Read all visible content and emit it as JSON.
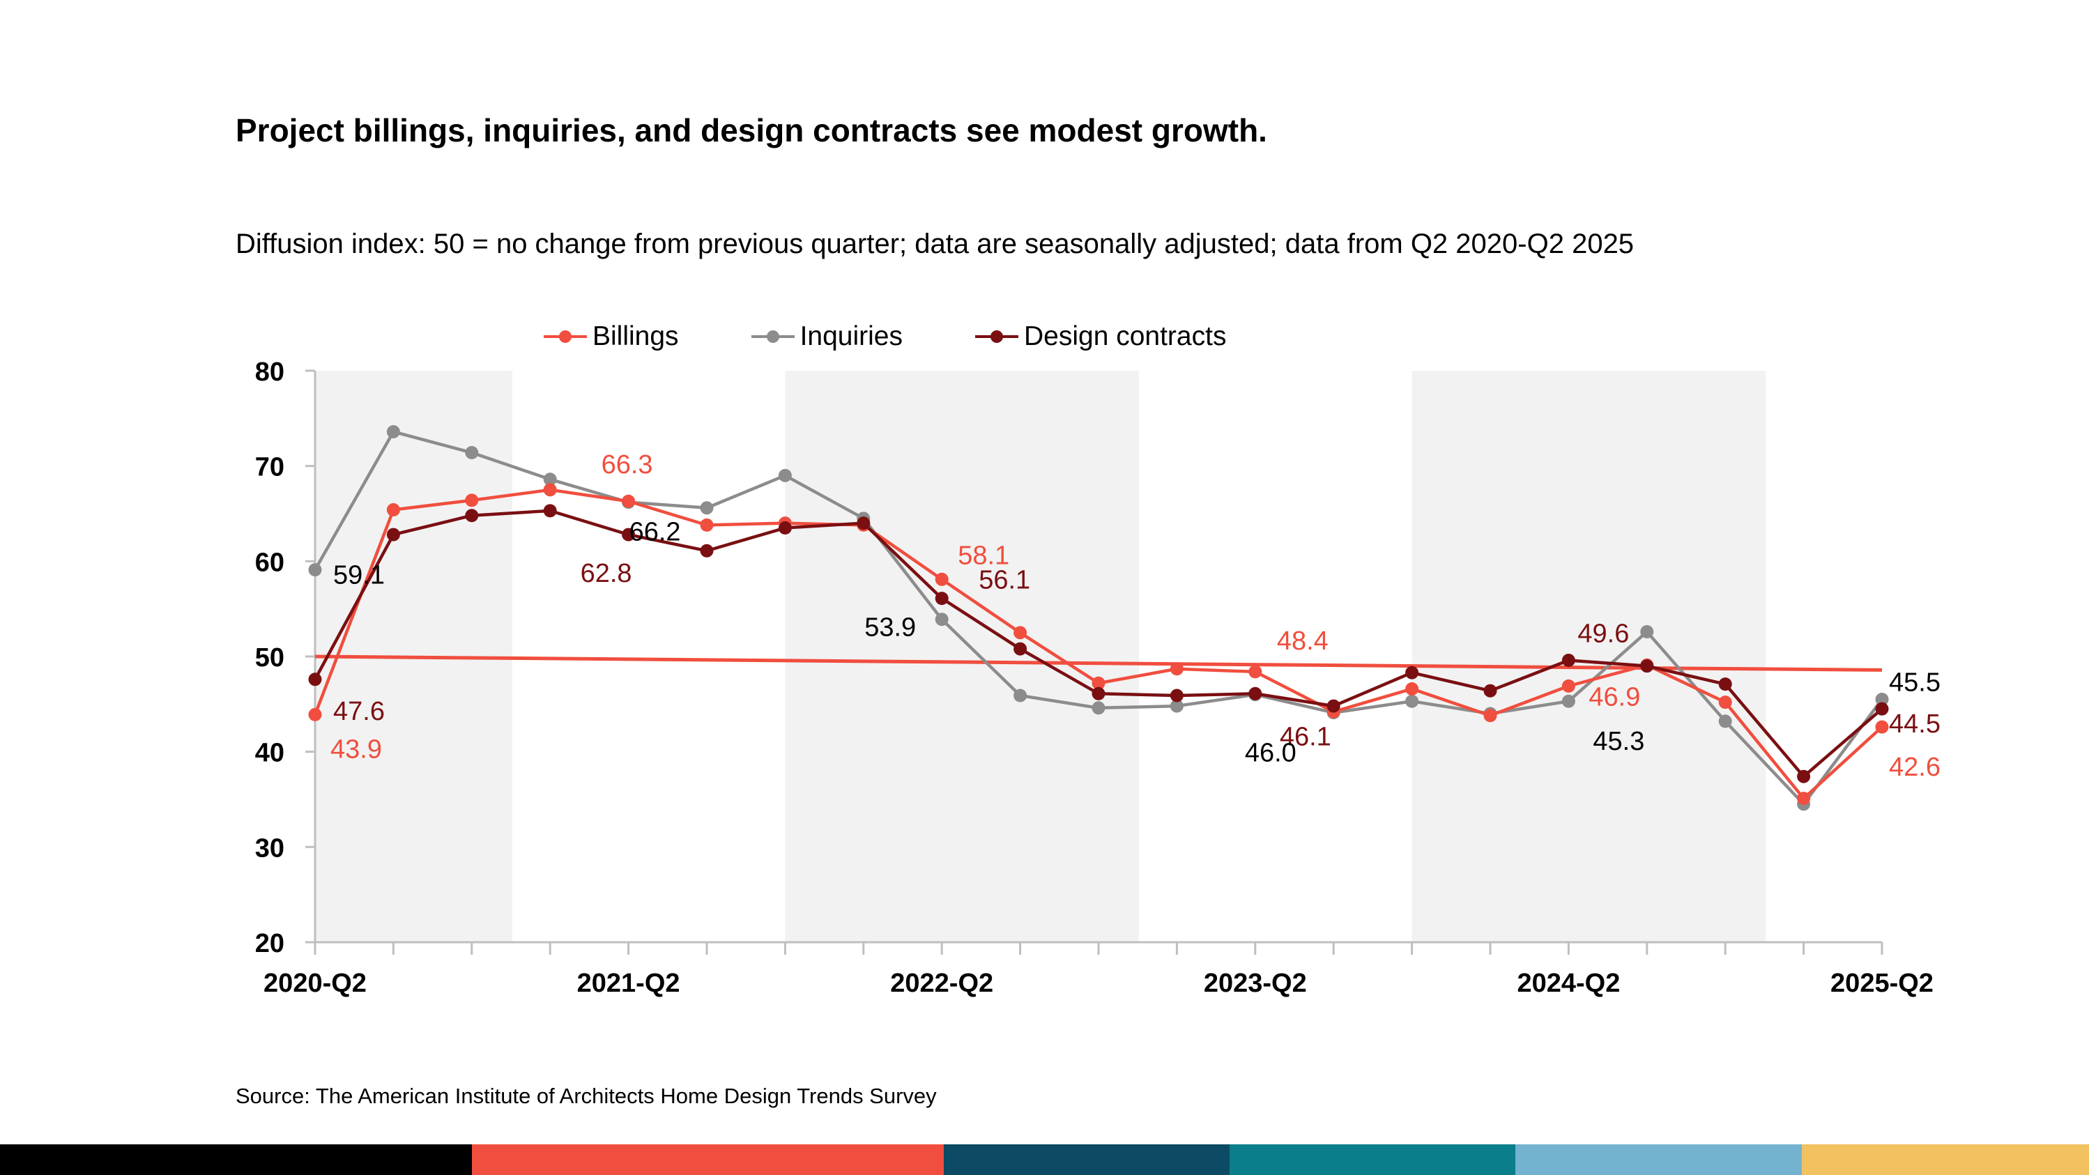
{
  "title": "Project billings, inquiries, and design contracts see modest growth.",
  "subtitle": "Diffusion index: 50 = no change from previous quarter; data are seasonally adjusted; data from Q2 2020-Q2 2025",
  "source": "Source: The American Institute of Architects Home Design Trends Survey",
  "legend": [
    {
      "name": "Billings",
      "color": "#f04e3e"
    },
    {
      "name": "Inquiries",
      "color": "#8c8c8c"
    },
    {
      "name": "Design contracts",
      "color": "#7a0f12"
    }
  ],
  "footer_colors": [
    "#000000",
    "#f04e3e",
    "#0d4a63",
    "#0b7e8c",
    "#74b3cf",
    "#f2c261"
  ],
  "chart_data": {
    "type": "line",
    "title": "Project billings, inquiries, and design contracts see modest growth.",
    "ylim": [
      20,
      80
    ],
    "yticks": [
      20,
      30,
      40,
      50,
      60,
      70,
      80
    ],
    "reference_line": 50,
    "x": [
      "2020-Q2",
      "2020-Q3",
      "2020-Q4",
      "2021-Q1",
      "2021-Q2",
      "2021-Q3",
      "2021-Q4",
      "2022-Q1",
      "2022-Q2",
      "2022-Q3",
      "2022-Q4",
      "2023-Q1",
      "2023-Q2",
      "2023-Q3",
      "2023-Q4",
      "2024-Q1",
      "2024-Q2",
      "2024-Q3",
      "2024-Q4",
      "2025-Q1",
      "2025-Q2"
    ],
    "xtick_labels": [
      "2020-Q2",
      "2021-Q2",
      "2022-Q2",
      "2023-Q2",
      "2024-Q2",
      "2025-Q2"
    ],
    "xtick_indices": [
      0,
      4,
      8,
      12,
      16,
      20
    ],
    "shaded_ranges": [
      [
        0,
        2
      ],
      [
        6,
        10
      ],
      [
        14,
        18
      ]
    ],
    "series": [
      {
        "name": "Billings",
        "color": "#f04e3e",
        "values": [
          43.9,
          65.4,
          66.4,
          67.5,
          66.3,
          63.8,
          64.0,
          63.8,
          58.1,
          52.5,
          47.2,
          48.7,
          48.4,
          44.2,
          46.6,
          43.8,
          46.9,
          49.1,
          45.2,
          35.1,
          42.6
        ]
      },
      {
        "name": "Inquiries",
        "color": "#8c8c8c",
        "values": [
          59.1,
          73.6,
          71.4,
          68.6,
          66.2,
          65.6,
          69.0,
          64.5,
          53.9,
          45.9,
          44.6,
          44.8,
          46.0,
          44.1,
          45.3,
          44.0,
          45.3,
          52.6,
          43.2,
          34.5,
          45.5
        ]
      },
      {
        "name": "Design contracts",
        "color": "#7a0f12",
        "values": [
          47.6,
          62.8,
          64.8,
          65.3,
          62.8,
          61.1,
          63.5,
          64.0,
          56.1,
          50.8,
          46.1,
          45.9,
          46.1,
          44.8,
          48.3,
          46.4,
          49.6,
          49.0,
          47.1,
          37.4,
          44.5
        ]
      }
    ],
    "data_labels": [
      {
        "text": "43.9",
        "series": "Billings",
        "index": 0
      },
      {
        "text": "47.6",
        "series": "Design contracts",
        "index": 0
      },
      {
        "text": "59.1",
        "series": "Inquiries",
        "index": 0
      },
      {
        "text": "66.3",
        "series": "Billings",
        "index": 4
      },
      {
        "text": "66.2",
        "series": "Inquiries",
        "index": 4
      },
      {
        "text": "62.8",
        "series": "Design contracts",
        "index": 4
      },
      {
        "text": "58.1",
        "series": "Billings",
        "index": 8
      },
      {
        "text": "56.1",
        "series": "Design contracts",
        "index": 8
      },
      {
        "text": "53.9",
        "series": "Inquiries",
        "index": 8
      },
      {
        "text": "48.4",
        "series": "Billings",
        "index": 12
      },
      {
        "text": "46.1",
        "series": "Design contracts",
        "index": 12
      },
      {
        "text": "46.0",
        "series": "Inquiries",
        "index": 12
      },
      {
        "text": "49.6",
        "series": "Design contracts",
        "index": 16
      },
      {
        "text": "46.9",
        "series": "Billings",
        "index": 16
      },
      {
        "text": "45.3",
        "series": "Inquiries",
        "index": 16
      },
      {
        "text": "45.5",
        "series": "Inquiries",
        "index": 20
      },
      {
        "text": "44.5",
        "series": "Design contracts",
        "index": 20
      },
      {
        "text": "42.6",
        "series": "Billings",
        "index": 20
      }
    ]
  }
}
